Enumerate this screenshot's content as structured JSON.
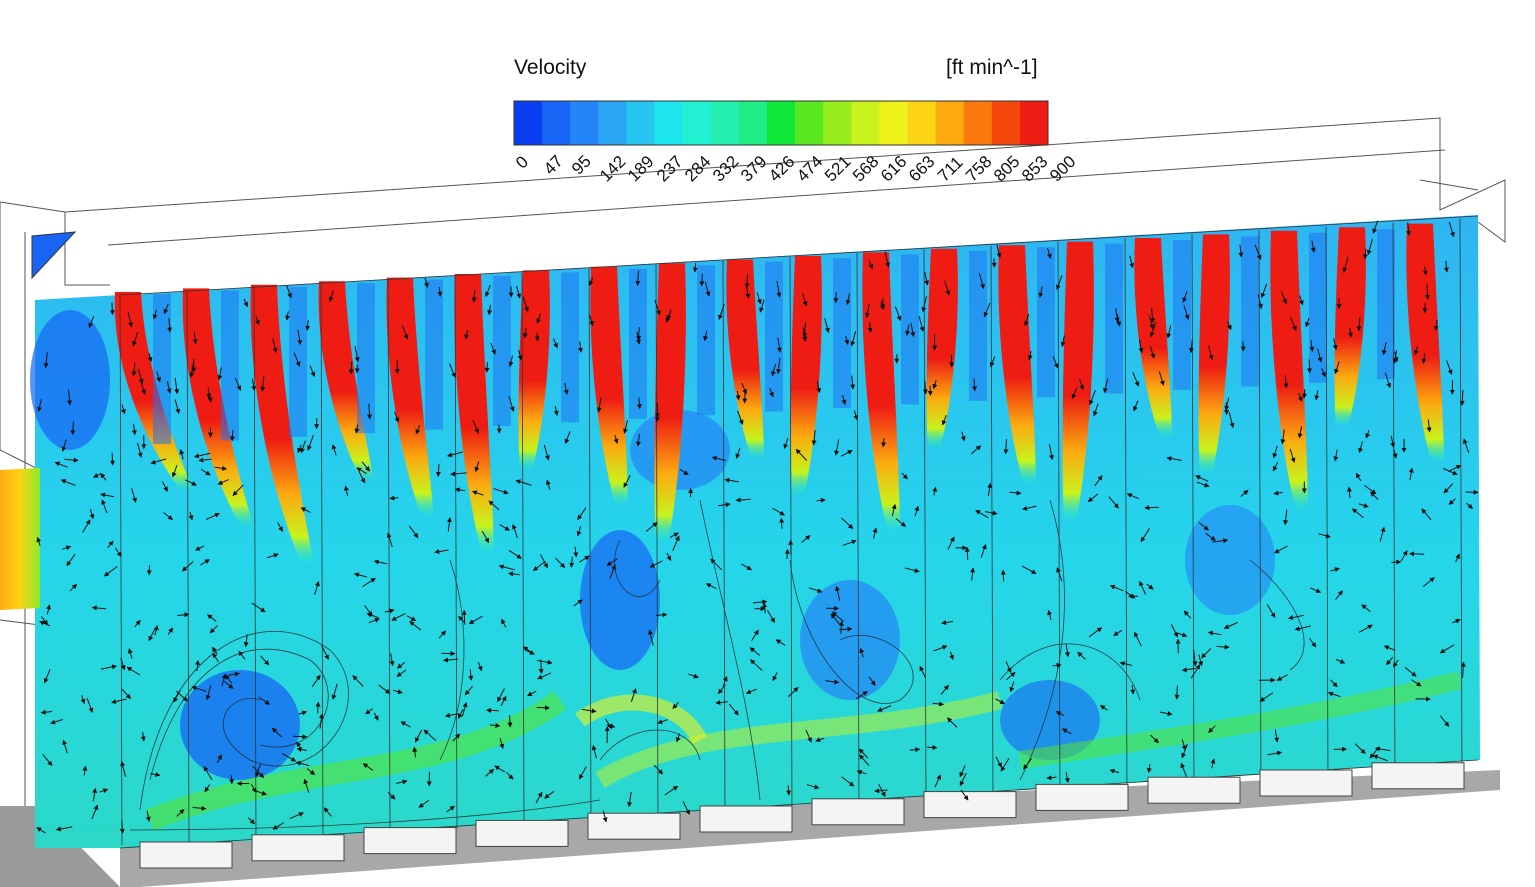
{
  "legend": {
    "title": "Velocity",
    "unit": "[ft min^-1]",
    "ticks": [
      "0",
      "47",
      "95",
      "142",
      "189",
      "237",
      "284",
      "332",
      "379",
      "426",
      "474",
      "521",
      "568",
      "616",
      "663",
      "711",
      "758",
      "805",
      "853",
      "900"
    ],
    "colors": [
      "#0a3cf0",
      "#1764f5",
      "#2385f7",
      "#2ba6f5",
      "#27c6f2",
      "#1ee6ee",
      "#22f0d2",
      "#23f0b0",
      "#1fee86",
      "#10e83a",
      "#5ae822",
      "#98ee1c",
      "#c8f31c",
      "#eef21a",
      "#fcd414",
      "#fcaa10",
      "#fa7a0e",
      "#f5480c",
      "#ee1c12"
    ]
  },
  "field": {
    "high_color": "#ee1c12",
    "low_color": "#1764f5",
    "mid_color": "#27c6f2",
    "inlet_color": "#fcd414",
    "jet_count": 20
  }
}
